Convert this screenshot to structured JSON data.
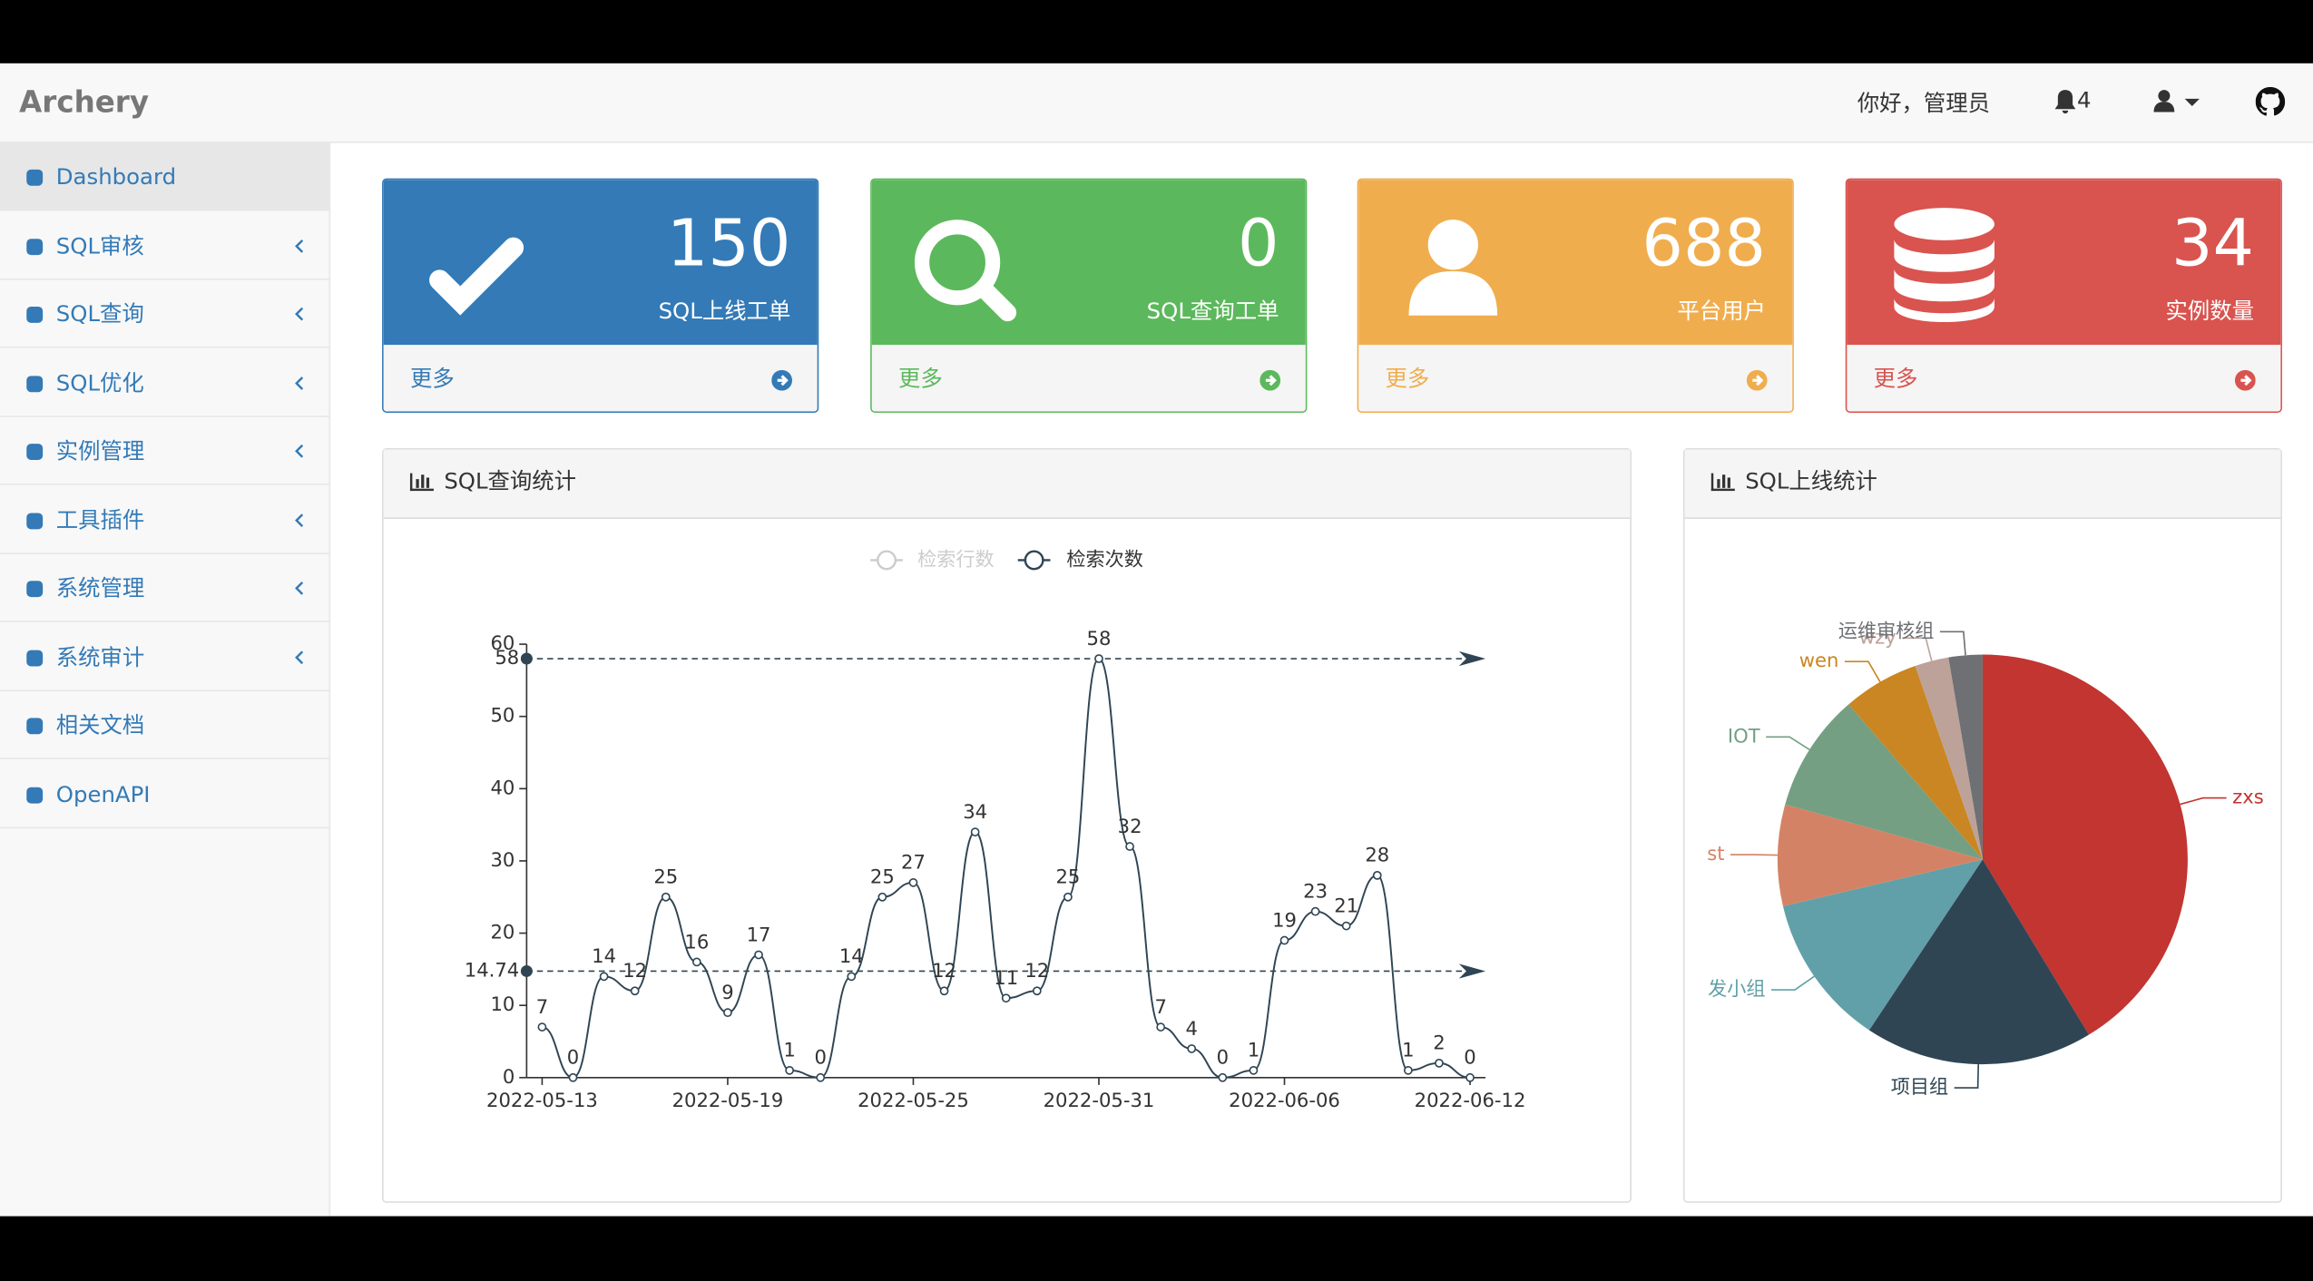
{
  "header": {
    "brand": "Archery",
    "greeting": "你好，管理员",
    "notifications": 4
  },
  "sidebar": {
    "items": [
      "Dashboard",
      "SQL审核",
      "SQL查询",
      "SQL优化",
      "实例管理",
      "工具插件",
      "系统管理",
      "系统审计",
      "相关文档",
      "OpenAPI"
    ]
  },
  "cards": [
    {
      "value": 150,
      "label": "SQL上线工单",
      "more": "更多",
      "color": "#337ab7"
    },
    {
      "value": 0,
      "label": "SQL查询工单",
      "more": "更多",
      "color": "#5cb85c"
    },
    {
      "value": 688,
      "label": "平台用户",
      "more": "更多",
      "color": "#f0ad4e"
    },
    {
      "value": 34,
      "label": "实例数量",
      "more": "更多",
      "color": "#d9534f"
    }
  ],
  "chart_data": [
    {
      "type": "line",
      "title": "SQL查询统计",
      "hidden_series": [
        "检索行数"
      ],
      "categories": [
        "2022-05-13",
        null,
        null,
        null,
        null,
        null,
        "2022-05-19",
        null,
        null,
        null,
        null,
        null,
        "2022-05-25",
        null,
        null,
        null,
        null,
        null,
        "2022-05-31",
        null,
        null,
        null,
        null,
        null,
        "2022-06-06",
        null,
        null,
        null,
        null,
        null,
        "2022-06-12"
      ],
      "series": [
        {
          "name": "检索次数",
          "color": "#2f4554",
          "values": [
            7,
            0,
            14,
            12,
            25,
            16,
            9,
            17,
            1,
            0,
            14,
            25,
            27,
            12,
            34,
            11,
            12,
            25,
            58,
            32,
            7,
            4,
            0,
            1,
            19,
            23,
            21,
            28,
            1,
            2,
            0
          ]
        }
      ],
      "ylim": [
        0,
        60
      ],
      "yticks": [
        0,
        10,
        20,
        30,
        40,
        50,
        60
      ],
      "mark_lines": [
        58,
        14.74
      ]
    },
    {
      "type": "pie",
      "title": "SQL上线统计",
      "categories": [
        "zxs",
        "项目组",
        "发小组",
        "st",
        "IOT",
        "wen",
        "wzy",
        "运维审核组"
      ],
      "values": [
        62,
        27,
        18,
        12,
        14,
        9,
        4,
        4
      ],
      "colors": [
        "#c23531",
        "#2f4554",
        "#61a0a8",
        "#d48265",
        "#749f83",
        "#ca8622",
        "#bda29a",
        "#6e7074"
      ]
    }
  ]
}
